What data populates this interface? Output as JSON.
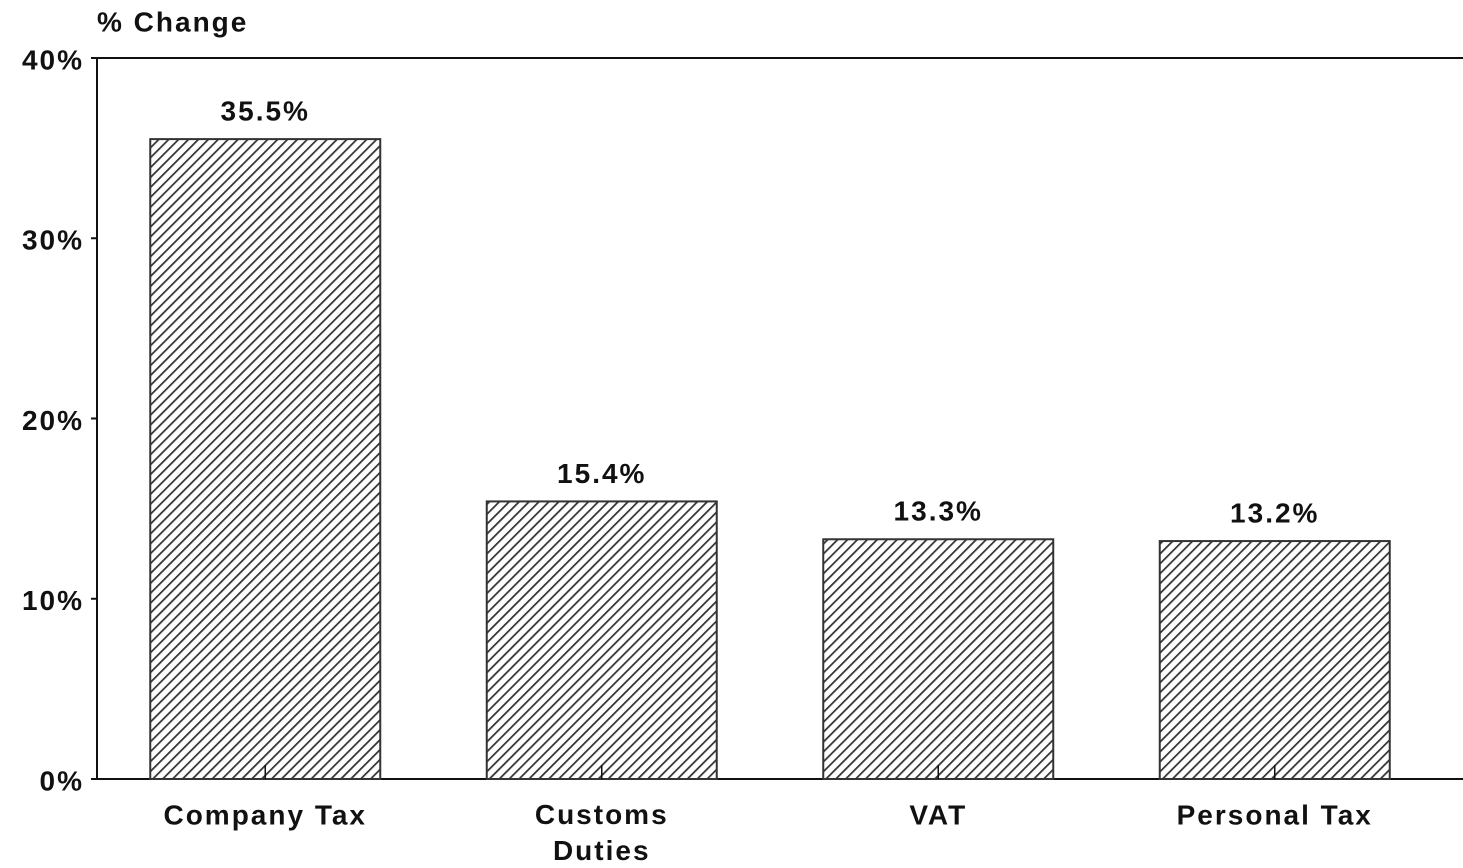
{
  "chart_data": {
    "type": "bar",
    "y_label": "% Change",
    "categories": [
      "Company Tax",
      "Customs\nDuties",
      "VAT",
      "Personal Tax"
    ],
    "values": [
      35.5,
      15.4,
      13.3,
      13.2
    ],
    "value_labels": [
      "35.5%",
      "15.4%",
      "13.3%",
      "13.2%"
    ],
    "color": "#333333",
    "ylim": [
      0,
      40
    ],
    "yticks": [
      {
        "value": 0,
        "label": "0%"
      },
      {
        "value": 10,
        "label": "10%"
      },
      {
        "value": 20,
        "label": "20%"
      },
      {
        "value": 30,
        "label": "30%"
      },
      {
        "value": 40,
        "label": "40%"
      }
    ]
  }
}
